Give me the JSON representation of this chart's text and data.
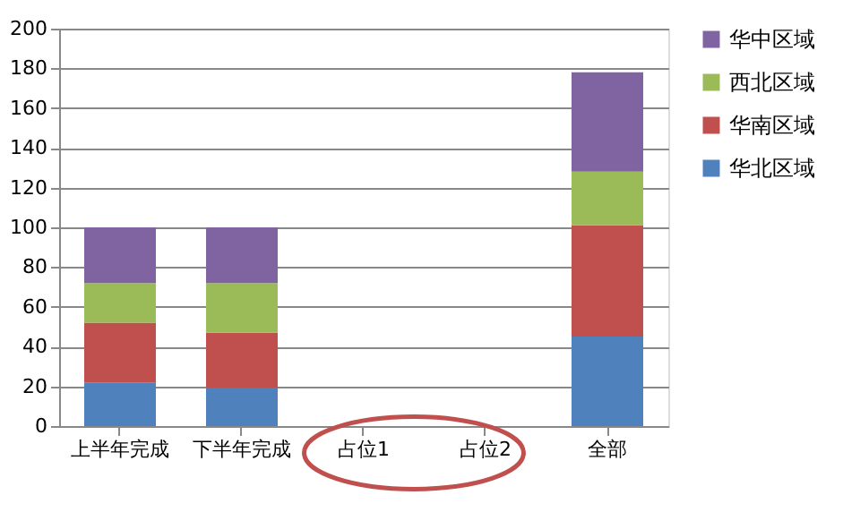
{
  "chart_data": {
    "type": "bar",
    "stacked": true,
    "categories": [
      "上半年完成",
      "下半年完成",
      "占位1",
      "占位2",
      "全部"
    ],
    "series": [
      {
        "name": "华北区域",
        "color": "#4f81bd",
        "values": [
          22,
          19,
          null,
          null,
          45
        ]
      },
      {
        "name": "华南区域",
        "color": "#c0504d",
        "values": [
          30,
          28,
          null,
          null,
          56
        ]
      },
      {
        "name": "西北区域",
        "color": "#9bbb59",
        "values": [
          20,
          25,
          null,
          null,
          27
        ]
      },
      {
        "name": "华中区域",
        "color": "#8064a2",
        "values": [
          28,
          28,
          null,
          null,
          50
        ]
      }
    ],
    "ylim": [
      0,
      200
    ],
    "yticks": [
      0,
      20,
      40,
      60,
      80,
      100,
      120,
      140,
      160,
      180,
      200
    ],
    "grid": "y",
    "legend": "right"
  }
}
